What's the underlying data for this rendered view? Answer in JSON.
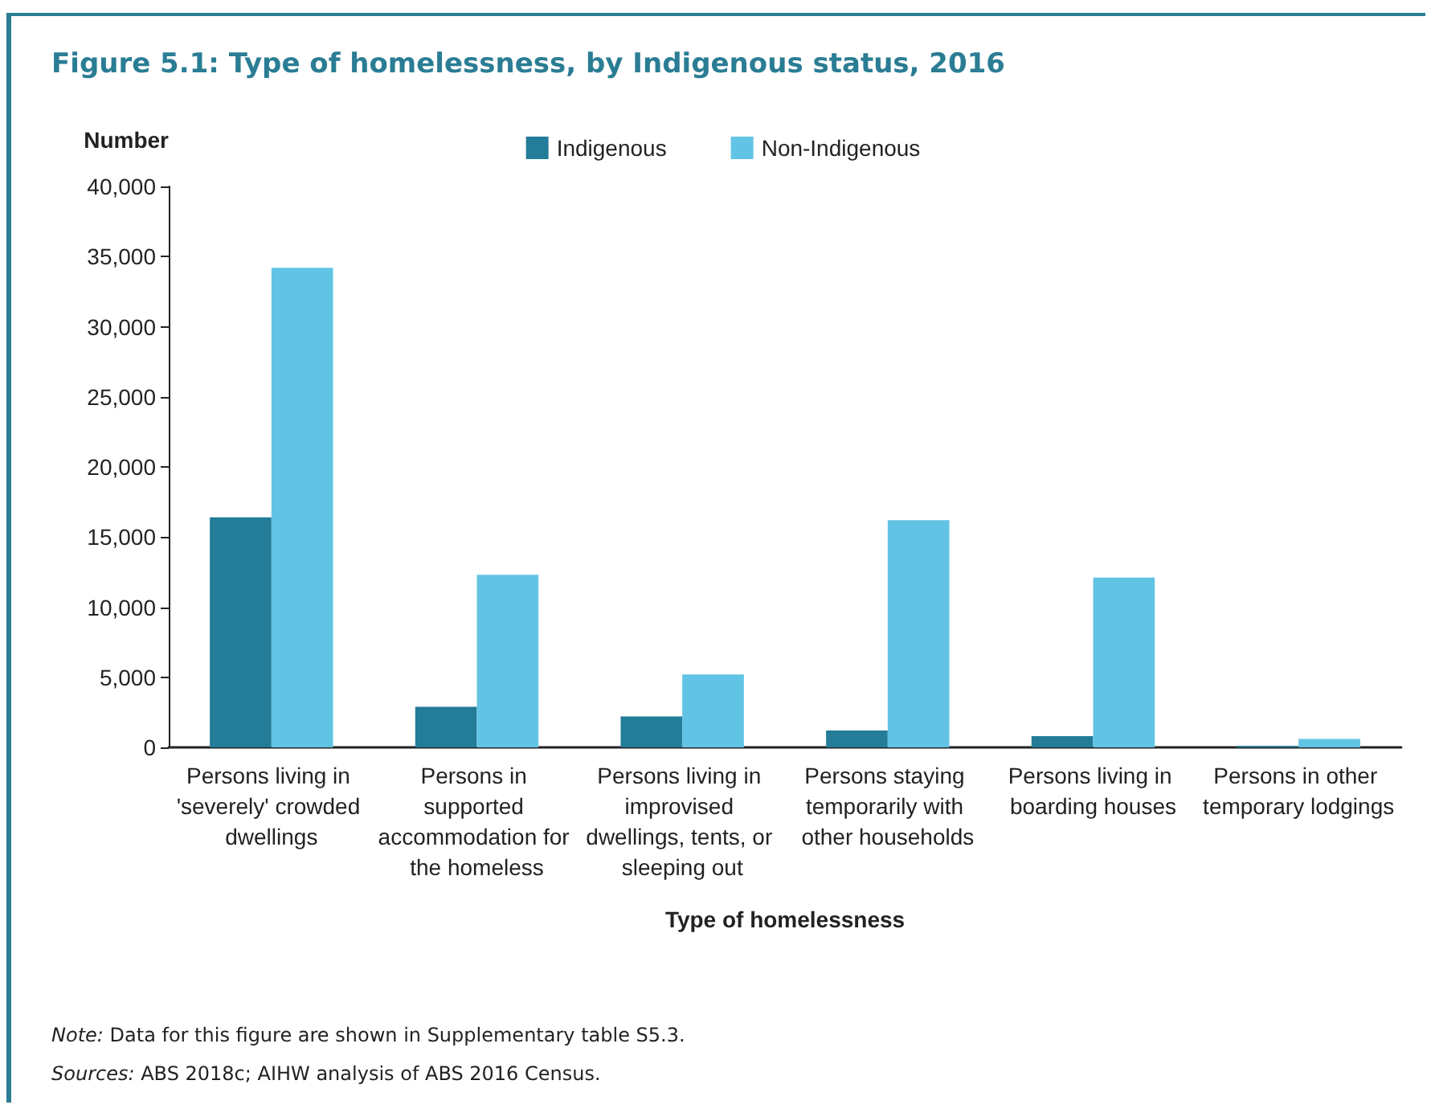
{
  "chart_data": {
    "type": "bar",
    "title": "Figure 5.1: Type of homelessness, by Indigenous status, 2016",
    "ylabel": "Number",
    "xlabel": "Type of homelessness",
    "categories": [
      "Persons living in 'severely' crowded dwellings",
      "Persons in supported accommodation for the homeless",
      "Persons living in improvised dwellings, tents, or sleeping out",
      "Persons staying temporarily with other households",
      "Persons living in boarding houses",
      "Persons in other temporary lodgings"
    ],
    "series": [
      {
        "name": "Indigenous",
        "color": "#237c98",
        "values": [
          16400,
          2900,
          2200,
          1200,
          800,
          100
        ]
      },
      {
        "name": "Non-Indigenous",
        "color": "#62c4e4",
        "values": [
          34200,
          12300,
          5200,
          16200,
          12100,
          600
        ]
      }
    ],
    "ylim": [
      0,
      40000
    ],
    "yticks": [
      {
        "value": 0,
        "label": "0"
      },
      {
        "value": 5000,
        "label": "5,000"
      },
      {
        "value": 10000,
        "label": "10,000"
      },
      {
        "value": 15000,
        "label": "15,000"
      },
      {
        "value": 20000,
        "label": "20,000"
      },
      {
        "value": 25000,
        "label": "25,000"
      },
      {
        "value": 30000,
        "label": "30,000"
      },
      {
        "value": 35000,
        "label": "35,000"
      },
      {
        "value": 40000,
        "label": "40,000"
      }
    ],
    "legend": "top",
    "grid": false,
    "annotations": [
      "Note: Data for this figure are shown in Supplementary table S5.3.",
      "Sources: ABS 2018c; AIHW analysis of ABS 2016 Census."
    ]
  }
}
